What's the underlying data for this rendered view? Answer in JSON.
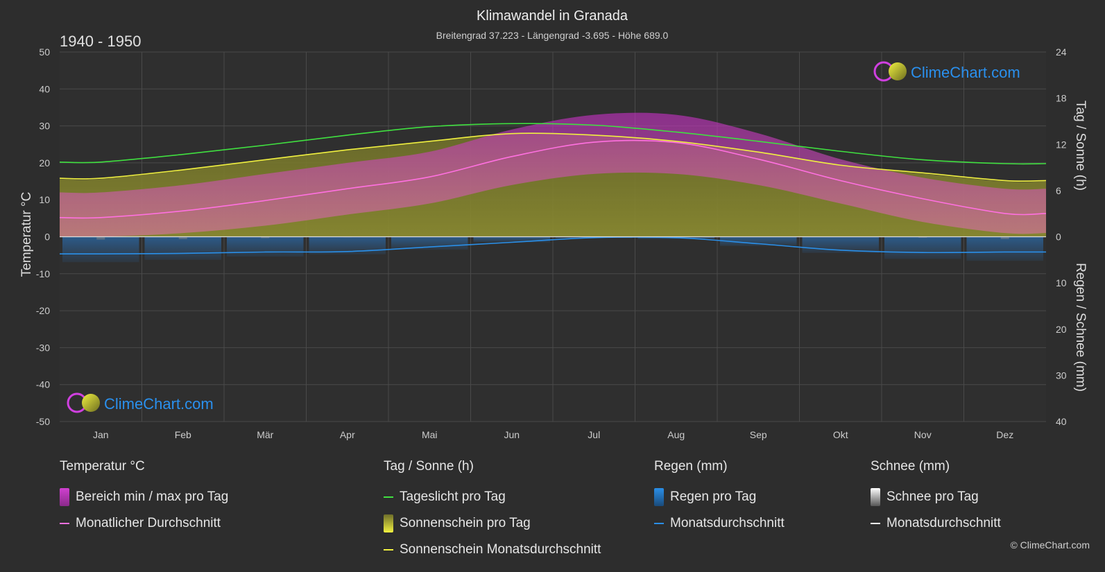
{
  "header": {
    "title": "Klimawandel in Granada",
    "subtitle": "Breitengrad 37.223 - Längengrad -3.695 - Höhe 689.0",
    "period": "1940 - 1950"
  },
  "watermark": {
    "text": "ClimeChart.com"
  },
  "copyright": "© ClimeChart.com",
  "colors": {
    "background": "#2d2d2d",
    "temp_range": "#d040c0",
    "temp_avg": "#ff70e0",
    "daylight": "#40e040",
    "sunshine_fill": "#a8a830",
    "sunshine_avg": "#f0f040",
    "rain": "#2a7fd4",
    "rain_avg": "#2a8fe8",
    "snow": "#aaaaaa",
    "snow_avg": "#ffffff",
    "brand": "#1e90ff"
  },
  "chart_data": {
    "type": "area",
    "categories": [
      "Jan",
      "Feb",
      "Mär",
      "Apr",
      "Mai",
      "Jun",
      "Jul",
      "Aug",
      "Sep",
      "Okt",
      "Nov",
      "Dez"
    ],
    "axes": {
      "left": {
        "label": "Temperatur °C",
        "min": -50,
        "max": 50,
        "ticks": [
          50,
          40,
          30,
          20,
          10,
          0,
          -10,
          -20,
          -30,
          -40,
          -50
        ]
      },
      "right_top": {
        "label": "Tag / Sonne (h)",
        "min": 0,
        "max": 24,
        "ticks": [
          24,
          18,
          12,
          6,
          0
        ]
      },
      "right_bottom": {
        "label": "Regen / Schnee (mm)",
        "min": 0,
        "max": 40,
        "ticks": [
          0,
          10,
          20,
          30,
          40
        ]
      }
    },
    "grid": true,
    "series": [
      {
        "name": "Bereich min / max pro Tag",
        "kind": "temp_range",
        "min": [
          0,
          1,
          3,
          6,
          9,
          14,
          17,
          17,
          14,
          9,
          4,
          1
        ],
        "max": [
          12,
          14,
          17,
          20,
          23,
          29,
          33,
          33,
          28,
          21,
          16,
          13
        ]
      },
      {
        "name": "Monatlicher Durchschnitt",
        "kind": "temp_avg",
        "values": [
          5.2,
          7.0,
          9.8,
          13.0,
          16.2,
          21.7,
          25.6,
          25.5,
          21.0,
          15.2,
          10.3,
          6.3
        ]
      },
      {
        "name": "Tageslicht pro Tag",
        "kind": "daylight",
        "values": [
          9.7,
          10.7,
          11.9,
          13.2,
          14.3,
          14.7,
          14.5,
          13.6,
          12.4,
          11.1,
          10.0,
          9.5
        ]
      },
      {
        "name": "Sonnenschein pro Tag",
        "kind": "sunshine_fill",
        "values": [
          7.5,
          8.7,
          10.0,
          11.3,
          12.4,
          13.4,
          13.2,
          12.4,
          11.0,
          9.3,
          8.2,
          7.2
        ]
      },
      {
        "name": "Sonnenschein Monatsdurchschnitt",
        "kind": "sunshine_avg",
        "values": [
          7.6,
          8.7,
          10.0,
          11.3,
          12.4,
          13.4,
          13.2,
          12.4,
          11.0,
          9.3,
          8.3,
          7.3
        ]
      },
      {
        "name": "Regen pro Tag",
        "kind": "rain",
        "values": [
          5.5,
          5.0,
          4.3,
          3.8,
          2.8,
          1.2,
          0.3,
          0.5,
          2.0,
          3.5,
          4.8,
          5.2
        ]
      },
      {
        "name": "Monatsdurchschnitt",
        "kind": "rain_avg",
        "values": [
          3.7,
          3.6,
          3.3,
          3.2,
          2.2,
          1.2,
          0.2,
          0.2,
          1.5,
          2.9,
          3.4,
          3.3
        ]
      },
      {
        "name": "Schnee pro Tag",
        "kind": "snow",
        "values": [
          0.6,
          0.5,
          0.3,
          0.1,
          0,
          0,
          0,
          0,
          0,
          0,
          0.2,
          0.5
        ]
      },
      {
        "name": "Monatsdurchschnitt",
        "kind": "snow_avg",
        "values": [
          0.1,
          0.1,
          0,
          0,
          0,
          0,
          0,
          0,
          0,
          0,
          0,
          0.1
        ]
      }
    ]
  },
  "legend": {
    "groups": [
      {
        "title": "Temperatur °C",
        "items": [
          {
            "label": "Bereich min / max pro Tag",
            "kind": "box",
            "color": "#d040c0"
          },
          {
            "label": "Monatlicher Durchschnitt",
            "kind": "line",
            "color": "#ff70e0"
          }
        ]
      },
      {
        "title": "Tag / Sonne (h)",
        "items": [
          {
            "label": "Tageslicht pro Tag",
            "kind": "line",
            "color": "#40e040"
          },
          {
            "label": "Sonnenschein pro Tag",
            "kind": "box",
            "color": "#c8c830"
          },
          {
            "label": "Sonnenschein Monatsdurchschnitt",
            "kind": "line",
            "color": "#f0f040"
          }
        ]
      },
      {
        "title": "Regen (mm)",
        "items": [
          {
            "label": "Regen pro Tag",
            "kind": "box",
            "color": "#2a7fd4"
          },
          {
            "label": "Monatsdurchschnitt",
            "kind": "line",
            "color": "#2a8fe8"
          }
        ]
      },
      {
        "title": "Schnee (mm)",
        "items": [
          {
            "label": "Schnee pro Tag",
            "kind": "box",
            "color": "#cccccc"
          },
          {
            "label": "Monatsdurchschnitt",
            "kind": "line",
            "color": "#ffffff"
          }
        ]
      }
    ]
  }
}
